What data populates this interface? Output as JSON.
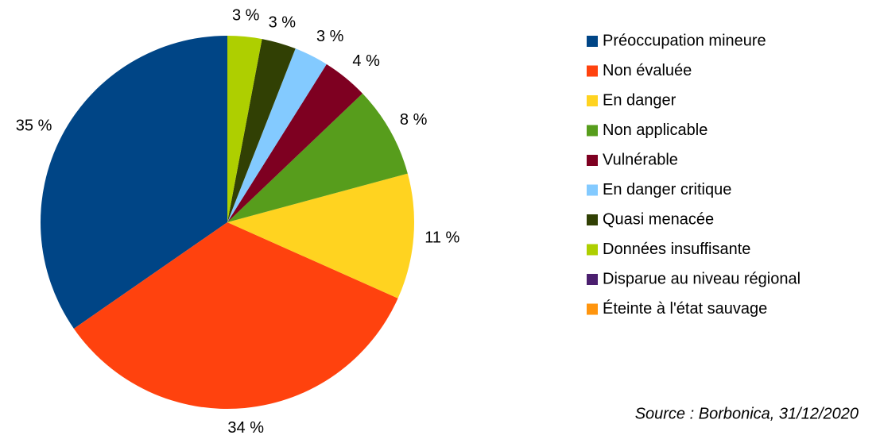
{
  "chart_data": {
    "type": "pie",
    "categories": [
      "Préoccupation mineure",
      "Non évaluée",
      "En danger",
      "Non applicable",
      "Vulnérable",
      "En danger critique",
      "Quasi menacée",
      "Données insuffisante",
      "Disparue au niveau régional",
      "Éteinte à l'état sauvage"
    ],
    "values": [
      35,
      34,
      11,
      8,
      4,
      3,
      3,
      3,
      0,
      0
    ],
    "value_labels": [
      "35 %",
      "34 %",
      "11 %",
      "8 %",
      "4 %",
      "3 %",
      "3 %",
      "3 %",
      null,
      null
    ],
    "colors": [
      "#004586",
      "#ff420e",
      "#ffd320",
      "#579d1c",
      "#7e0021",
      "#83caff",
      "#314004",
      "#aecf00",
      "#4b1f6f",
      "#ff950e"
    ],
    "legend": "right",
    "source": "Source : Borbonica, 31/12/2020"
  }
}
